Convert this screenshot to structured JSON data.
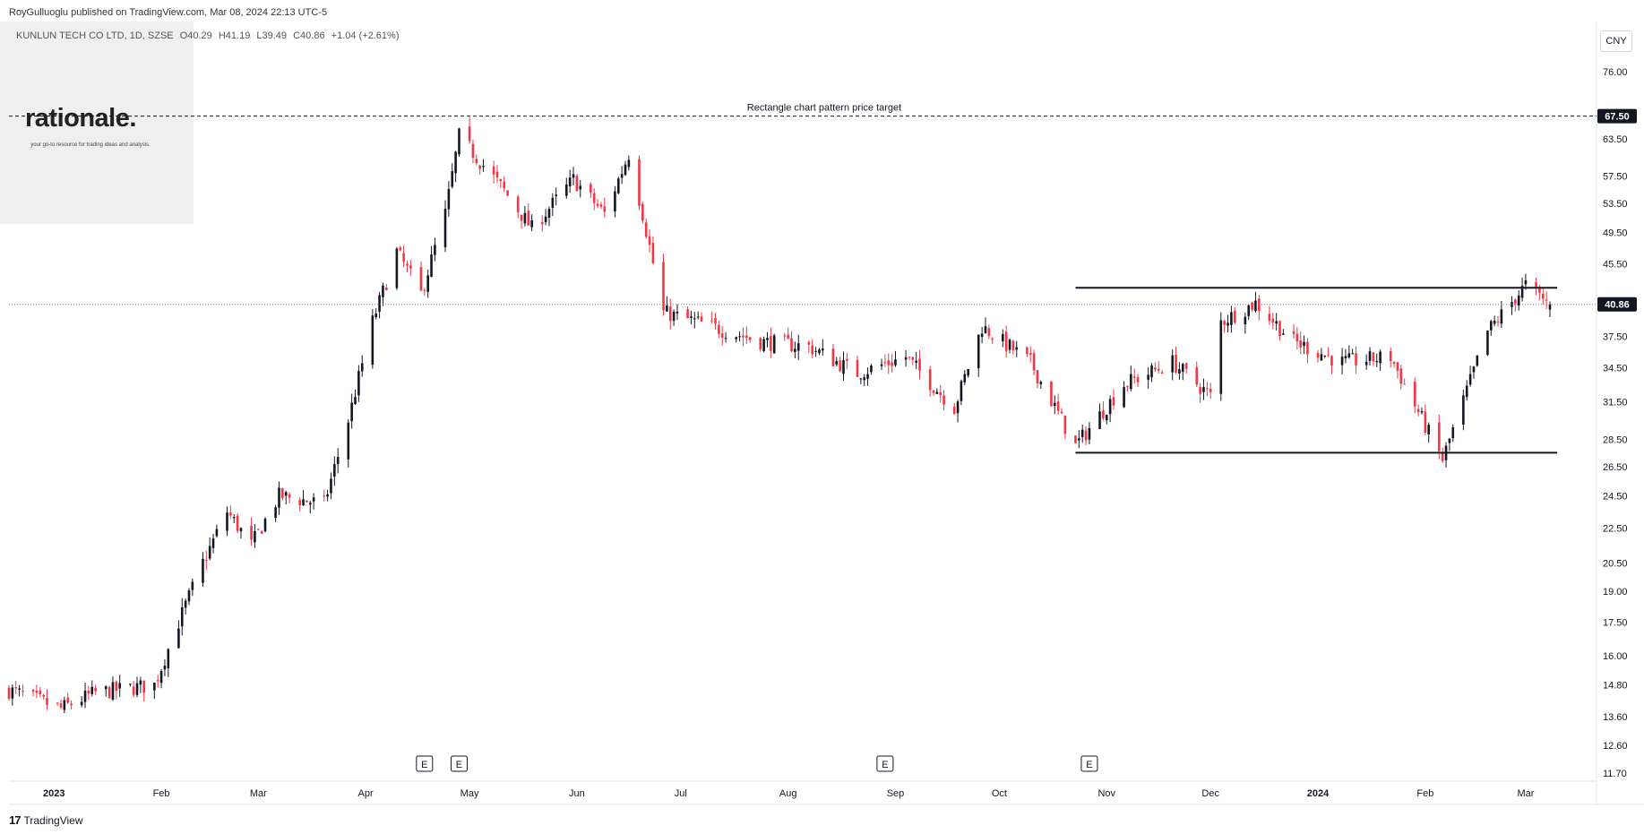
{
  "header": {
    "published_by": "RoyGulluoglu published on TradingView.com, Mar 08, 2024 22:13 UTC-5"
  },
  "symbol": {
    "name": "KUNLUN TECH CO LTD, 1D, SZSE",
    "open": "O40.29",
    "high": "H41.19",
    "low": "L39.49",
    "close": "C40.86",
    "change": "+1.04 (+2.61%)"
  },
  "logo": {
    "wordmark": "rationale.",
    "tagline": "your go-to resource for trading ideas and analysis."
  },
  "currency_button": "CNY",
  "footer": {
    "brand": "TradingView"
  },
  "colors": {
    "up": "#131722",
    "down": "#f23645",
    "grid": "#e0e3eb"
  },
  "chart_data": {
    "type": "candlestick",
    "x_axis_labels": [
      "2023",
      "Feb",
      "Mar",
      "Apr",
      "May",
      "Jun",
      "Jul",
      "Aug",
      "Sep",
      "Oct",
      "Nov",
      "Dec",
      "2024",
      "Feb",
      "Mar"
    ],
    "y_axis_labels": [
      "76.00",
      "63.50",
      "57.50",
      "53.50",
      "49.50",
      "45.50",
      "37.50",
      "34.50",
      "31.50",
      "28.50",
      "26.50",
      "24.50",
      "22.50",
      "20.50",
      "19.00",
      "17.50",
      "16.00",
      "14.80",
      "13.60",
      "12.60",
      "11.70"
    ],
    "y_scale": "log",
    "price_tags": [
      {
        "label": "67.50",
        "value": 67.5
      },
      {
        "label": "40.86",
        "value": 40.86
      }
    ],
    "annotations": [
      {
        "text": "Rectangle chart pattern price target",
        "value": 67.5,
        "style": "dashed"
      }
    ],
    "rectangle": {
      "top": 42.7,
      "bottom": 27.5,
      "from": "2023-10-23",
      "to": "2024-03-08"
    },
    "earnings_markers": [
      {
        "label": "E",
        "date": "2023-04-18"
      },
      {
        "label": "E",
        "date": "2023-04-28"
      },
      {
        "label": "E",
        "date": "2023-08-29"
      },
      {
        "label": "E",
        "date": "2023-10-27"
      }
    ],
    "close_series": [
      {
        "date": "2022-12-19",
        "close": 14.6
      },
      {
        "date": "2023-01-03",
        "close": 13.9
      },
      {
        "date": "2023-01-13",
        "close": 14.5
      },
      {
        "date": "2023-01-30",
        "close": 14.8
      },
      {
        "date": "2023-02-06",
        "close": 17.5
      },
      {
        "date": "2023-02-13",
        "close": 20.5
      },
      {
        "date": "2023-02-20",
        "close": 23.5
      },
      {
        "date": "2023-02-27",
        "close": 21.5
      },
      {
        "date": "2023-03-07",
        "close": 24.5
      },
      {
        "date": "2023-03-20",
        "close": 24.0
      },
      {
        "date": "2023-03-27",
        "close": 30.0
      },
      {
        "date": "2023-04-03",
        "close": 39.0
      },
      {
        "date": "2023-04-10",
        "close": 47.0
      },
      {
        "date": "2023-04-17",
        "close": 42.0
      },
      {
        "date": "2023-04-24",
        "close": 52.0
      },
      {
        "date": "2023-04-28",
        "close": 64.0
      },
      {
        "date": "2023-05-10",
        "close": 56.0
      },
      {
        "date": "2023-05-19",
        "close": 50.0
      },
      {
        "date": "2023-05-31",
        "close": 57.0
      },
      {
        "date": "2023-06-09",
        "close": 52.0
      },
      {
        "date": "2023-06-16",
        "close": 61.0
      },
      {
        "date": "2023-06-20",
        "close": 52.0
      },
      {
        "date": "2023-06-26",
        "close": 40.0
      },
      {
        "date": "2023-07-10",
        "close": 38.5
      },
      {
        "date": "2023-07-24",
        "close": 37.0
      },
      {
        "date": "2023-08-07",
        "close": 36.5
      },
      {
        "date": "2023-08-21",
        "close": 34.0
      },
      {
        "date": "2023-09-04",
        "close": 35.5
      },
      {
        "date": "2023-09-18",
        "close": 31.0
      },
      {
        "date": "2023-09-26",
        "close": 38.5
      },
      {
        "date": "2023-10-10",
        "close": 35.0
      },
      {
        "date": "2023-10-23",
        "close": 28.0
      },
      {
        "date": "2023-11-06",
        "close": 33.0
      },
      {
        "date": "2023-11-20",
        "close": 35.0
      },
      {
        "date": "2023-12-01",
        "close": 32.0
      },
      {
        "date": "2023-12-04",
        "close": 39.0
      },
      {
        "date": "2023-12-14",
        "close": 41.0
      },
      {
        "date": "2023-12-25",
        "close": 37.0
      },
      {
        "date": "2024-01-08",
        "close": 35.0
      },
      {
        "date": "2024-01-22",
        "close": 35.5
      },
      {
        "date": "2024-02-02",
        "close": 29.0
      },
      {
        "date": "2024-02-06",
        "close": 27.0
      },
      {
        "date": "2024-02-19",
        "close": 38.0
      },
      {
        "date": "2024-03-01",
        "close": 43.0
      },
      {
        "date": "2024-03-08",
        "close": 40.86
      }
    ]
  }
}
